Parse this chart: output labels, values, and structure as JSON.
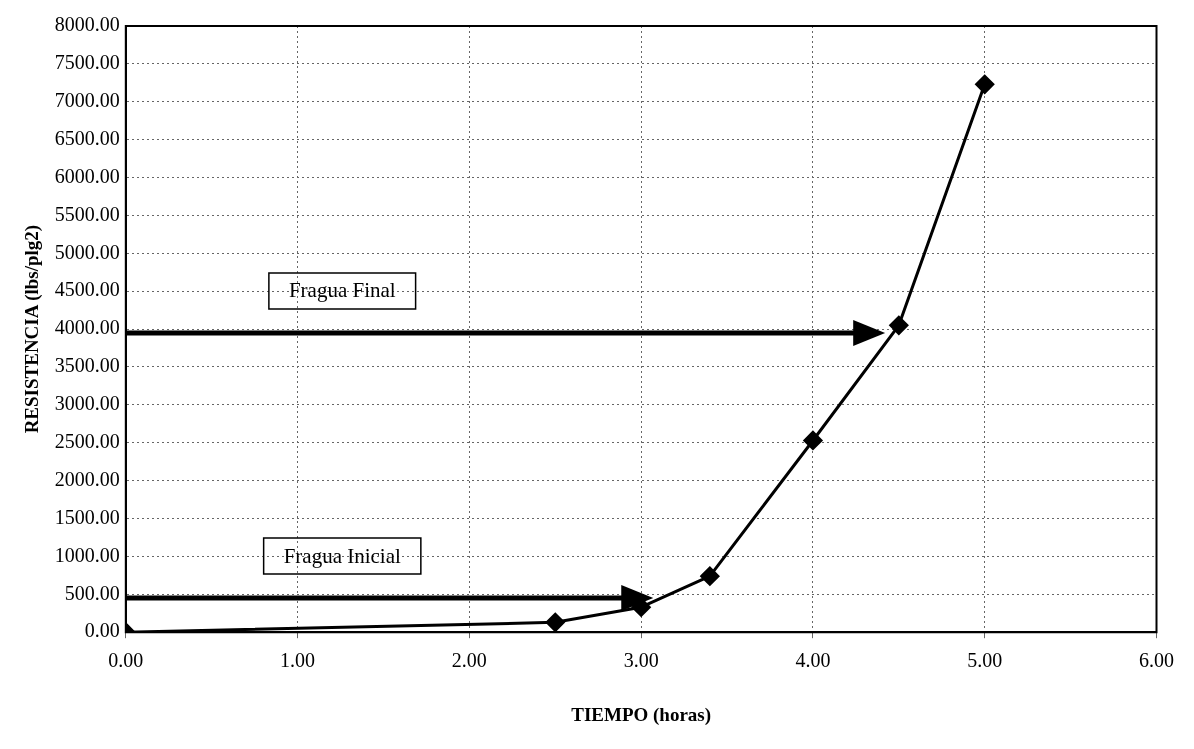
{
  "chart_data": {
    "type": "line",
    "xlabel": "TIEMPO (horas)",
    "ylabel": "RESISTENCIA (lbs/plg2)",
    "x": [
      0,
      2.5,
      3.0,
      3.4,
      4.0,
      4.5,
      5.0
    ],
    "series": [
      {
        "color": "#000000",
        "values": [
          0,
          130,
          330,
          740,
          2530,
          4050,
          7230
        ]
      }
    ],
    "xlim": [
      0,
      6
    ],
    "xticks": [
      {
        "value": 0,
        "label": "0.00"
      },
      {
        "value": 1,
        "label": "1.00"
      },
      {
        "value": 2,
        "label": "2.00"
      },
      {
        "value": 3,
        "label": "3.00"
      },
      {
        "value": 4,
        "label": "4.00"
      },
      {
        "value": 5,
        "label": "5.00"
      },
      {
        "value": 6,
        "label": "6.00"
      }
    ],
    "ylim": [
      0,
      8000
    ],
    "yticks": [
      {
        "value": 0,
        "label": "0.00"
      },
      {
        "value": 500,
        "label": "500.00"
      },
      {
        "value": 1000,
        "label": "1000.00"
      },
      {
        "value": 1500,
        "label": "1500.00"
      },
      {
        "value": 2000,
        "label": "2000.00"
      },
      {
        "value": 2500,
        "label": "2500.00"
      },
      {
        "value": 3000,
        "label": "3000.00"
      },
      {
        "value": 3500,
        "label": "3500.00"
      },
      {
        "value": 4000,
        "label": "4000.00"
      },
      {
        "value": 4500,
        "label": "4500.00"
      },
      {
        "value": 5000,
        "label": "5000.00"
      },
      {
        "value": 5500,
        "label": "5500.00"
      },
      {
        "value": 6000,
        "label": "6000.00"
      },
      {
        "value": 6500,
        "label": "6500.00"
      },
      {
        "value": 7000,
        "label": "7000.00"
      },
      {
        "value": 7500,
        "label": "7500.00"
      },
      {
        "value": 8000,
        "label": "8000.00"
      }
    ],
    "grid": true,
    "legend": false,
    "marker": "diamond",
    "line_style": "solid",
    "ref_lines": [
      {
        "axis": "y",
        "value": 3950,
        "label": "Fragua Final",
        "color": "#000000"
      },
      {
        "axis": "y",
        "value": 450,
        "label": "Fragua Inicial",
        "color": "#000000"
      }
    ]
  }
}
